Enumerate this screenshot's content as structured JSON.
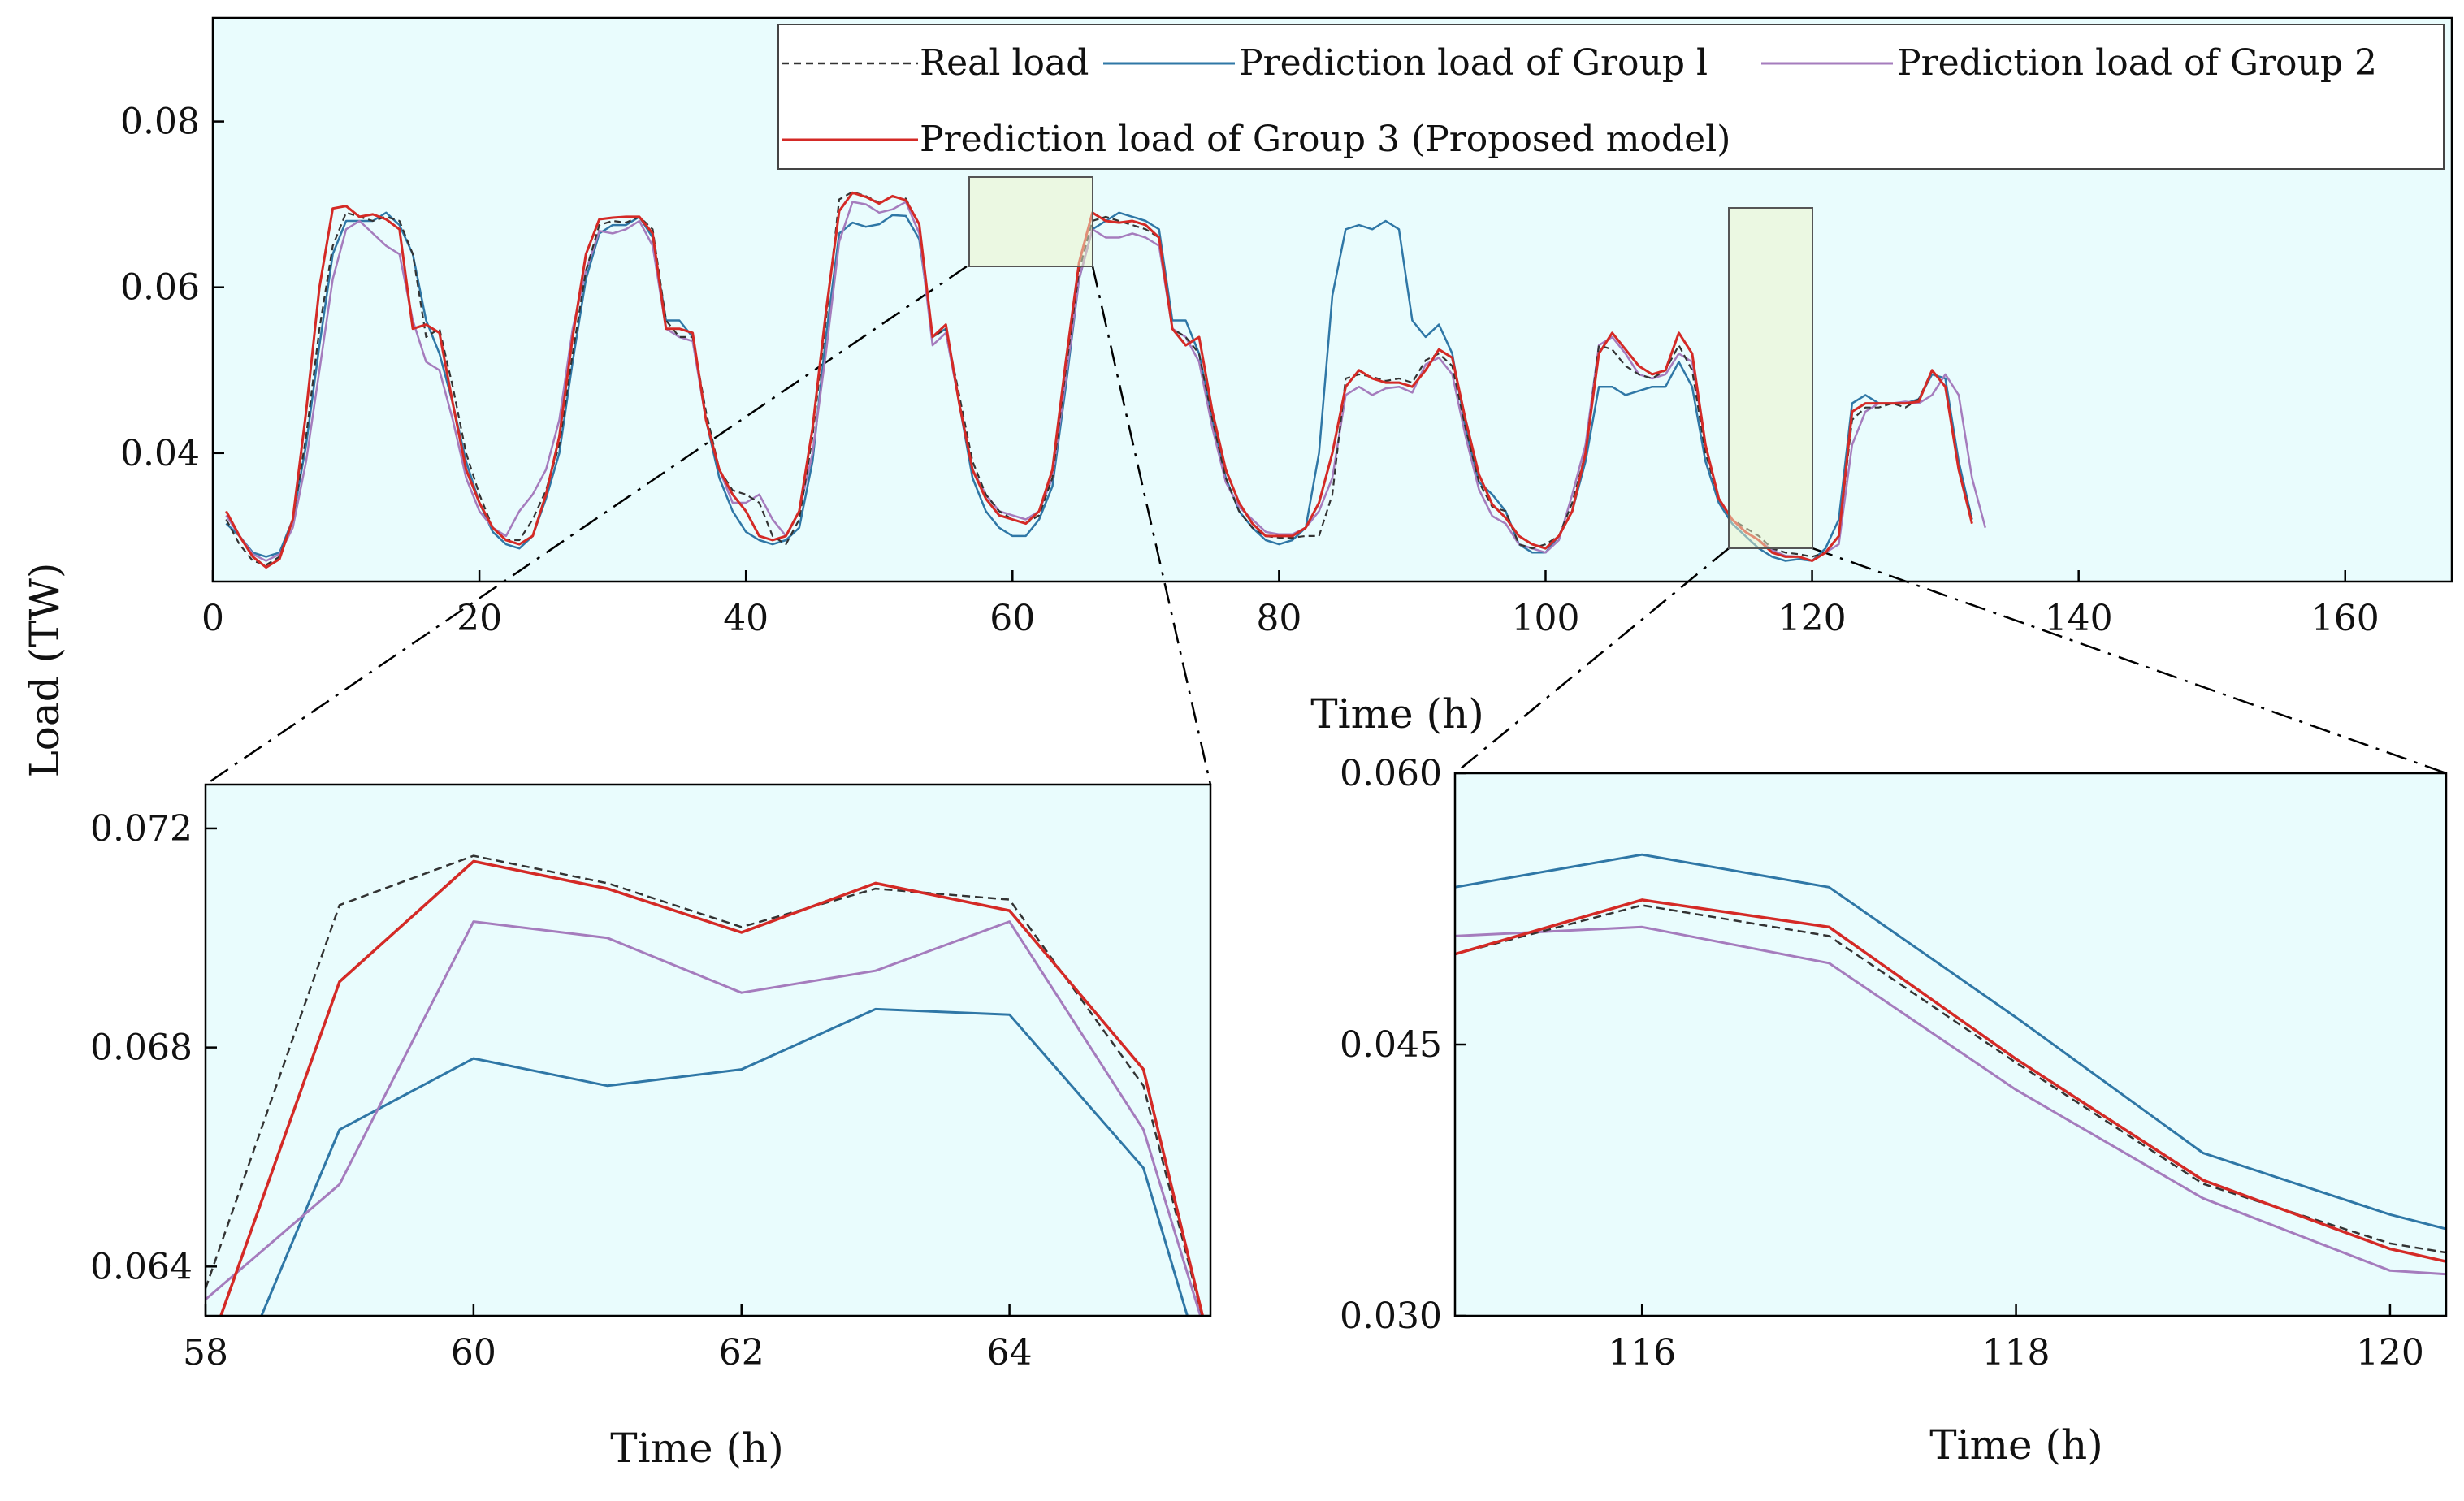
{
  "colors": {
    "plot_bg": "#e9fcfd",
    "real": "#333333",
    "group1": "#2f77a6",
    "group2": "#a57cbd",
    "group3": "#d42a26",
    "zoom_box": "#555555"
  },
  "chart_data": [
    {
      "type": "line",
      "id": "main",
      "title": "",
      "xlabel": "Time (h)",
      "ylabel": "Load (TW)",
      "xlim": [
        0,
        168
      ],
      "ylim": [
        0.0245,
        0.0925
      ],
      "xticks": [
        0,
        20,
        40,
        60,
        80,
        100,
        120,
        140,
        160
      ],
      "yticks": [
        0.04,
        0.06,
        0.08
      ],
      "tick_labels_x": [
        "0",
        "20",
        "40",
        "60",
        "80",
        "100",
        "120",
        "140",
        "160"
      ],
      "tick_labels_y": [
        "0.04",
        "0.06",
        "0.08"
      ],
      "legend": {
        "position": "top-right",
        "items": [
          {
            "label": "Real load",
            "series": "real",
            "style": "dashed"
          },
          {
            "label": "Prediction load of Group l",
            "series": "group1",
            "style": "solid"
          },
          {
            "label": "Prediction load of Group 2",
            "series": "group2",
            "style": "solid"
          },
          {
            "label": "Prediction load of Group 3 (Proposed model)",
            "series": "group3",
            "style": "solid"
          }
        ]
      },
      "zoom_regions": [
        {
          "x": [
            57,
            66
          ],
          "y": [
            0.0612,
            0.0715
          ]
        },
        {
          "x": [
            114,
            120
          ],
          "y": [
            0.0285,
            0.068
          ]
        }
      ],
      "series": [
        {
          "name": "Real load",
          "key": "real",
          "style": "dashed",
          "values": [
            0.032,
            0.029,
            0.027,
            0.0265,
            0.0275,
            0.032,
            0.042,
            0.055,
            0.065,
            0.069,
            0.0685,
            0.068,
            0.0685,
            0.068,
            0.064,
            0.054,
            0.055,
            0.048,
            0.04,
            0.035,
            0.031,
            0.0295,
            0.0295,
            0.032,
            0.0355,
            0.041,
            0.052,
            0.062,
            0.0675,
            0.068,
            0.0678,
            0.0685,
            0.067,
            0.056,
            0.054,
            0.054,
            0.045,
            0.038,
            0.0355,
            0.035,
            0.034,
            0.03,
            0.029,
            0.032,
            0.042,
            0.056,
            0.0706,
            0.0715,
            0.071,
            0.0702,
            0.0709,
            0.0707,
            0.0675,
            0.054,
            0.055,
            0.047,
            0.039,
            0.035,
            0.033,
            0.032,
            0.0315,
            0.0325,
            0.037,
            0.05,
            0.062,
            0.068,
            0.0685,
            0.068,
            0.0675,
            0.067,
            0.066,
            0.055,
            0.054,
            0.052,
            0.044,
            0.037,
            0.033,
            0.031,
            0.03,
            0.0298,
            0.0298,
            0.03,
            0.03,
            0.035,
            0.049,
            0.0495,
            0.0492,
            0.0487,
            0.049,
            0.0485,
            0.0512,
            0.052,
            0.0505,
            0.043,
            0.0365,
            0.0335,
            0.033,
            0.029,
            0.0285,
            0.029,
            0.03,
            0.034,
            0.04,
            0.053,
            0.0525,
            0.0505,
            0.0495,
            0.049,
            0.05,
            0.053,
            0.05,
            0.04,
            0.0345,
            0.032,
            0.031,
            0.03,
            0.0285,
            0.028,
            0.0278,
            0.0275,
            0.028,
            0.03,
            0.044,
            0.0455,
            0.0455,
            0.046,
            0.0455,
            0.0465,
            0.05,
            0.048,
            0.038,
            0.032
          ]
        },
        {
          "name": "Prediction load of Group l",
          "key": "group1",
          "style": "solid",
          "values": [
            0.0315,
            0.03,
            0.028,
            0.0275,
            0.028,
            0.032,
            0.041,
            0.053,
            0.064,
            0.068,
            0.068,
            0.068,
            0.069,
            0.0675,
            0.064,
            0.056,
            0.052,
            0.046,
            0.039,
            0.034,
            0.0305,
            0.029,
            0.0285,
            0.03,
            0.0345,
            0.04,
            0.051,
            0.061,
            0.0665,
            0.0675,
            0.0675,
            0.0685,
            0.066,
            0.056,
            0.056,
            0.054,
            0.044,
            0.037,
            0.033,
            0.0305,
            0.0295,
            0.029,
            0.0295,
            0.031,
            0.039,
            0.054,
            0.0665,
            0.0678,
            0.0673,
            0.0676,
            0.0687,
            0.0686,
            0.0658,
            0.054,
            0.055,
            0.046,
            0.037,
            0.033,
            0.031,
            0.03,
            0.03,
            0.032,
            0.036,
            0.048,
            0.061,
            0.067,
            0.068,
            0.069,
            0.0685,
            0.068,
            0.067,
            0.056,
            0.056,
            0.052,
            0.044,
            0.037,
            0.033,
            0.031,
            0.0295,
            0.029,
            0.0295,
            0.031,
            0.04,
            0.059,
            0.067,
            0.0675,
            0.067,
            0.068,
            0.067,
            0.056,
            0.054,
            0.0555,
            0.052,
            0.043,
            0.0365,
            0.035,
            0.033,
            0.029,
            0.028,
            0.028,
            0.03,
            0.033,
            0.039,
            0.048,
            0.048,
            0.047,
            0.0475,
            0.048,
            0.048,
            0.051,
            0.048,
            0.039,
            0.034,
            0.0315,
            0.03,
            0.0285,
            0.0275,
            0.027,
            0.0272,
            0.027,
            0.0285,
            0.032,
            0.046,
            0.047,
            0.046,
            0.046,
            0.046,
            0.0465,
            0.0495,
            0.049,
            0.039,
            0.032
          ]
        },
        {
          "name": "Prediction load of Group 2",
          "key": "group2",
          "style": "solid",
          "values": [
            0.0325,
            0.03,
            0.0278,
            0.027,
            0.0278,
            0.031,
            0.039,
            0.05,
            0.061,
            0.067,
            0.068,
            0.0665,
            0.065,
            0.064,
            0.056,
            0.051,
            0.05,
            0.044,
            0.037,
            0.033,
            0.031,
            0.03,
            0.033,
            0.035,
            0.038,
            0.044,
            0.055,
            0.062,
            0.0668,
            0.0665,
            0.067,
            0.068,
            0.065,
            0.055,
            0.054,
            0.0535,
            0.044,
            0.038,
            0.034,
            0.034,
            0.035,
            0.032,
            0.03,
            0.033,
            0.04,
            0.052,
            0.0655,
            0.0703,
            0.07,
            0.069,
            0.0694,
            0.0703,
            0.0665,
            0.053,
            0.0545,
            0.046,
            0.038,
            0.035,
            0.033,
            0.0325,
            0.032,
            0.033,
            0.037,
            0.049,
            0.061,
            0.067,
            0.066,
            0.066,
            0.0665,
            0.066,
            0.065,
            0.055,
            0.054,
            0.051,
            0.043,
            0.0365,
            0.0335,
            0.032,
            0.0305,
            0.0302,
            0.0302,
            0.031,
            0.033,
            0.037,
            0.047,
            0.048,
            0.047,
            0.0478,
            0.048,
            0.0473,
            0.0507,
            0.0515,
            0.0495,
            0.042,
            0.0356,
            0.0324,
            0.0315,
            0.029,
            0.0285,
            0.028,
            0.0295,
            0.035,
            0.041,
            0.053,
            0.054,
            0.052,
            0.0495,
            0.049,
            0.0495,
            0.052,
            0.051,
            0.041,
            0.0345,
            0.032,
            0.0305,
            0.0295,
            0.0283,
            0.0276,
            0.0275,
            0.027,
            0.028,
            0.029,
            0.041,
            0.045,
            0.046,
            0.046,
            0.0462,
            0.046,
            0.047,
            0.0495,
            0.047,
            0.037,
            0.031
          ]
        },
        {
          "name": "Prediction load of Group 3 (Proposed model)",
          "key": "group3",
          "style": "solid",
          "values": [
            0.033,
            0.03,
            0.0275,
            0.0262,
            0.0272,
            0.032,
            0.045,
            0.06,
            0.0695,
            0.0698,
            0.0685,
            0.0688,
            0.0682,
            0.067,
            0.055,
            0.0555,
            0.0545,
            0.046,
            0.038,
            0.034,
            0.031,
            0.0295,
            0.029,
            0.03,
            0.035,
            0.042,
            0.054,
            0.064,
            0.0682,
            0.0684,
            0.0685,
            0.0685,
            0.0665,
            0.055,
            0.055,
            0.0545,
            0.044,
            0.038,
            0.035,
            0.033,
            0.03,
            0.0295,
            0.03,
            0.033,
            0.043,
            0.057,
            0.0692,
            0.0714,
            0.0709,
            0.0701,
            0.071,
            0.0705,
            0.0676,
            0.054,
            0.0555,
            0.046,
            0.038,
            0.0345,
            0.0325,
            0.032,
            0.0315,
            0.033,
            0.038,
            0.051,
            0.063,
            0.069,
            0.068,
            0.0678,
            0.068,
            0.0675,
            0.066,
            0.055,
            0.053,
            0.054,
            0.045,
            0.038,
            0.034,
            0.0315,
            0.03,
            0.03,
            0.03,
            0.031,
            0.034,
            0.04,
            0.048,
            0.05,
            0.049,
            0.0485,
            0.0485,
            0.048,
            0.05,
            0.0525,
            0.0515,
            0.044,
            0.0374,
            0.0338,
            0.0322,
            0.03,
            0.029,
            0.0285,
            0.03,
            0.033,
            0.04,
            0.052,
            0.0545,
            0.0525,
            0.0505,
            0.0495,
            0.05,
            0.0545,
            0.052,
            0.041,
            0.0345,
            0.032,
            0.0305,
            0.0295,
            0.028,
            0.0275,
            0.0275,
            0.027,
            0.028,
            0.03,
            0.045,
            0.046,
            0.046,
            0.046,
            0.046,
            0.0462,
            0.05,
            0.048,
            0.038,
            0.0315
          ]
        }
      ]
    },
    {
      "type": "line",
      "id": "zoom_left",
      "title": "",
      "xlabel": "Time (h)",
      "ylabel": "",
      "xlim": [
        58,
        65.5
      ],
      "ylim": [
        0.0631,
        0.0728
      ],
      "xticks": [
        58,
        60,
        62,
        64
      ],
      "yticks": [
        0.064,
        0.068,
        0.072
      ],
      "tick_labels_x": [
        "58",
        "60",
        "62",
        "64"
      ],
      "tick_labels_y": [
        "0.064",
        "0.068",
        "0.072"
      ],
      "series": [
        {
          "name": "Real load",
          "key": "real",
          "x": [
            58,
            59,
            60,
            61,
            62,
            63,
            64,
            65,
            65.5
          ],
          "values": [
            0.0636,
            0.0706,
            0.0715,
            0.071,
            0.0702,
            0.0709,
            0.0707,
            0.0673,
            0.0625
          ]
        },
        {
          "name": "Prediction load of Group l",
          "key": "group1",
          "x": [
            58.4,
            59,
            60,
            61,
            62,
            63,
            64,
            65,
            65.4
          ],
          "values": [
            0.063,
            0.0665,
            0.0678,
            0.0673,
            0.0676,
            0.0687,
            0.0686,
            0.0658,
            0.0625
          ]
        },
        {
          "name": "Prediction load of Group 2",
          "key": "group2",
          "x": [
            58,
            59,
            60,
            61,
            62,
            63,
            64,
            65,
            65.5
          ],
          "values": [
            0.0634,
            0.0655,
            0.0703,
            0.07,
            0.069,
            0.0694,
            0.0703,
            0.0665,
            0.0625
          ]
        },
        {
          "name": "Prediction load of Group 3 (Proposed model)",
          "key": "group3",
          "x": [
            58.1,
            59,
            60,
            61,
            62,
            63,
            64,
            65,
            65.5
          ],
          "values": [
            0.063,
            0.0692,
            0.0714,
            0.0709,
            0.0701,
            0.071,
            0.0705,
            0.0676,
            0.0625
          ]
        }
      ]
    },
    {
      "type": "line",
      "id": "zoom_right",
      "title": "",
      "xlabel": "Time (h)",
      "ylabel": "",
      "xlim": [
        115,
        120.3
      ],
      "ylim": [
        0.03,
        0.06
      ],
      "xticks": [
        116,
        118,
        120
      ],
      "yticks": [
        0.03,
        0.045,
        0.06
      ],
      "tick_labels_x": [
        "116",
        "118",
        "120"
      ],
      "tick_labels_y": [
        "0.030",
        "0.045",
        "0.060"
      ],
      "series": [
        {
          "name": "Real load",
          "key": "real",
          "x": [
            115,
            116,
            117,
            118,
            119,
            120,
            120.3
          ],
          "values": [
            0.05,
            0.0527,
            0.051,
            0.044,
            0.0373,
            0.034,
            0.0335
          ]
        },
        {
          "name": "Prediction load of Group l",
          "key": "group1",
          "x": [
            115,
            116,
            117,
            118,
            119,
            120,
            120.3
          ],
          "values": [
            0.0537,
            0.0555,
            0.0537,
            0.0465,
            0.039,
            0.0356,
            0.0348
          ]
        },
        {
          "name": "Prediction load of Group 2",
          "key": "group2",
          "x": [
            115,
            116,
            117,
            118,
            119,
            120,
            120.3
          ],
          "values": [
            0.051,
            0.0515,
            0.0495,
            0.0425,
            0.0365,
            0.0325,
            0.0323
          ]
        },
        {
          "name": "Prediction load of Group 3 (Proposed model)",
          "key": "group3",
          "x": [
            115,
            116,
            117,
            118,
            119,
            120,
            120.3
          ],
          "values": [
            0.05,
            0.053,
            0.0515,
            0.0442,
            0.0375,
            0.0337,
            0.033
          ]
        }
      ]
    }
  ]
}
